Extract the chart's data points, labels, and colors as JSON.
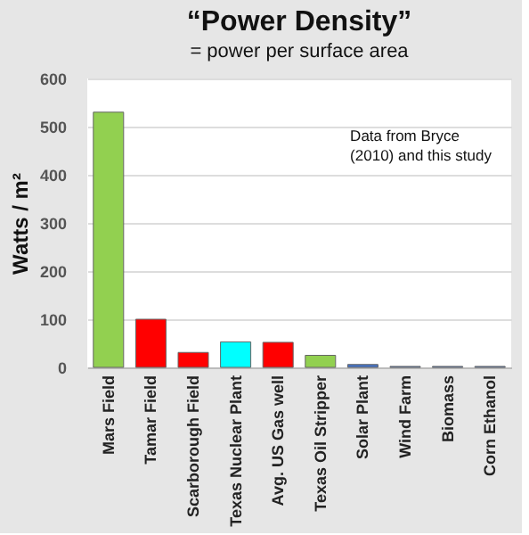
{
  "chart_data": {
    "type": "bar",
    "title": "“Power Density”",
    "subtitle": "= power per surface area",
    "ylabel": "Watts / m²",
    "categories": [
      "Mars Field",
      "Tamar Field",
      "Scarborough Field",
      "Texas Nuclear Plant",
      "Avg. US Gas well",
      "Texas Oil Stripper",
      "Solar Plant",
      "Wind Farm",
      "Biomass",
      "Corn Ethanol"
    ],
    "values": [
      530,
      100,
      31,
      53,
      52,
      25,
      6,
      2,
      2,
      2
    ],
    "colors": [
      "#92d050",
      "#ff0000",
      "#ff0000",
      "#00ffff",
      "#ff0000",
      "#92d050",
      "#4472c4",
      "#4472c4",
      "#4472c4",
      "#4472c4"
    ],
    "ylim": [
      0,
      600
    ],
    "yticks": [
      0,
      100,
      200,
      300,
      400,
      500,
      600
    ],
    "grid": "y",
    "annotations": [
      "Data from Bryce\n(2010) and this study"
    ]
  }
}
